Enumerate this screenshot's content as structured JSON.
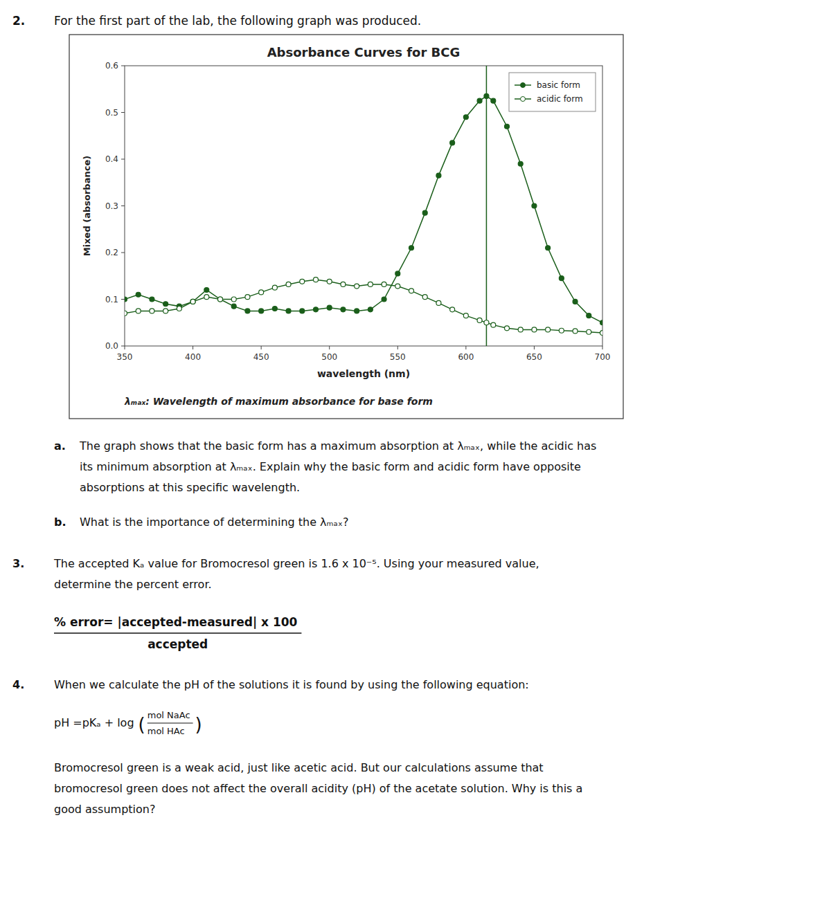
{
  "chart_data": {
    "type": "line",
    "title": "Absorbance Curves for BCG",
    "x_label": "wavelength (nm)",
    "y_label": "Mixed (absorbance)",
    "x": [
      350,
      360,
      370,
      380,
      390,
      400,
      410,
      420,
      430,
      440,
      450,
      460,
      470,
      480,
      490,
      500,
      510,
      520,
      530,
      540,
      550,
      560,
      570,
      580,
      590,
      600,
      610,
      615,
      620,
      630,
      640,
      650,
      660,
      670,
      680,
      690,
      700
    ],
    "series": [
      {
        "name": "basic form",
        "color": "#1a5e1a",
        "marker": "circle",
        "values": [
          0.1,
          0.11,
          0.1,
          0.09,
          0.085,
          0.095,
          0.12,
          0.1,
          0.085,
          0.075,
          0.075,
          0.08,
          0.075,
          0.075,
          0.078,
          0.082,
          0.078,
          0.075,
          0.078,
          0.1,
          0.155,
          0.21,
          0.285,
          0.365,
          0.435,
          0.49,
          0.525,
          0.535,
          0.525,
          0.47,
          0.39,
          0.3,
          0.21,
          0.145,
          0.095,
          0.065,
          0.05
        ]
      },
      {
        "name": "acidic form",
        "color": "#1a5e1a",
        "marker": "open circle",
        "values": [
          0.07,
          0.075,
          0.075,
          0.075,
          0.08,
          0.095,
          0.105,
          0.1,
          0.1,
          0.105,
          0.115,
          0.125,
          0.132,
          0.138,
          0.142,
          0.138,
          0.132,
          0.128,
          0.132,
          0.132,
          0.128,
          0.118,
          0.105,
          0.092,
          0.078,
          0.065,
          0.055,
          0.05,
          0.045,
          0.038,
          0.035,
          0.035,
          0.035,
          0.033,
          0.032,
          0.03,
          0.028
        ]
      }
    ],
    "vertical_lines": [
      615
    ],
    "xlim": [
      350,
      700
    ],
    "ylim": [
      0.0,
      0.6
    ],
    "xticks": [
      350,
      400,
      450,
      500,
      550,
      600,
      650,
      700
    ],
    "yticks": [
      {
        "value": 0.0,
        "label": "0.0"
      },
      0.1,
      0.2,
      0.3,
      0.4,
      0.5,
      0.6
    ],
    "grid": false,
    "legend": "upper right",
    "annotations": [
      "λₘₐₓ: Wavelength of maximum absorbance for base form"
    ]
  },
  "document": {
    "heading": {
      "label": "2.",
      "text": "For the first part of the lab, the following graph was produced."
    },
    "q2a": {
      "label": "a.",
      "lines": [
        "The graph shows that the basic form has a maximum absorption at λₘₐₓ, while the acidic has",
        "its minimum absorption at λₘₐₓ. Explain why the basic form and acidic form have opposite",
        "absorptions at this specific wavelength."
      ]
    },
    "q2b": {
      "label": "b.",
      "lines": [
        "What is the importance of determining the λₘₐₓ?"
      ]
    },
    "q3": {
      "label": "3.",
      "lines": [
        "The accepted Kₐ value for Bromocresol green is 1.6 x 10⁻⁵. Using your measured value,",
        "determine the percent error."
      ]
    },
    "formula": {
      "numerator": "% error= |accepted-measured| x 100",
      "denominator": "accepted"
    },
    "q4": {
      "label": "4.",
      "lines": [
        "When we calculate the pH of the solutions it is found by using the following equation:"
      ]
    },
    "ph_equation": {
      "lhs": "pH =pKₐ + log",
      "open": "(",
      "numerator": "mol NaAc",
      "denominator": "mol HAc",
      "close": ")"
    },
    "q4_followup": {
      "lines": [
        "Bromocresol green is a weak acid, just like acetic acid. But our calculations assume that",
        "bromocresol green does not affect the overall acidity (pH) of the acetate solution. Why is this a",
        "good assumption?"
      ]
    }
  }
}
